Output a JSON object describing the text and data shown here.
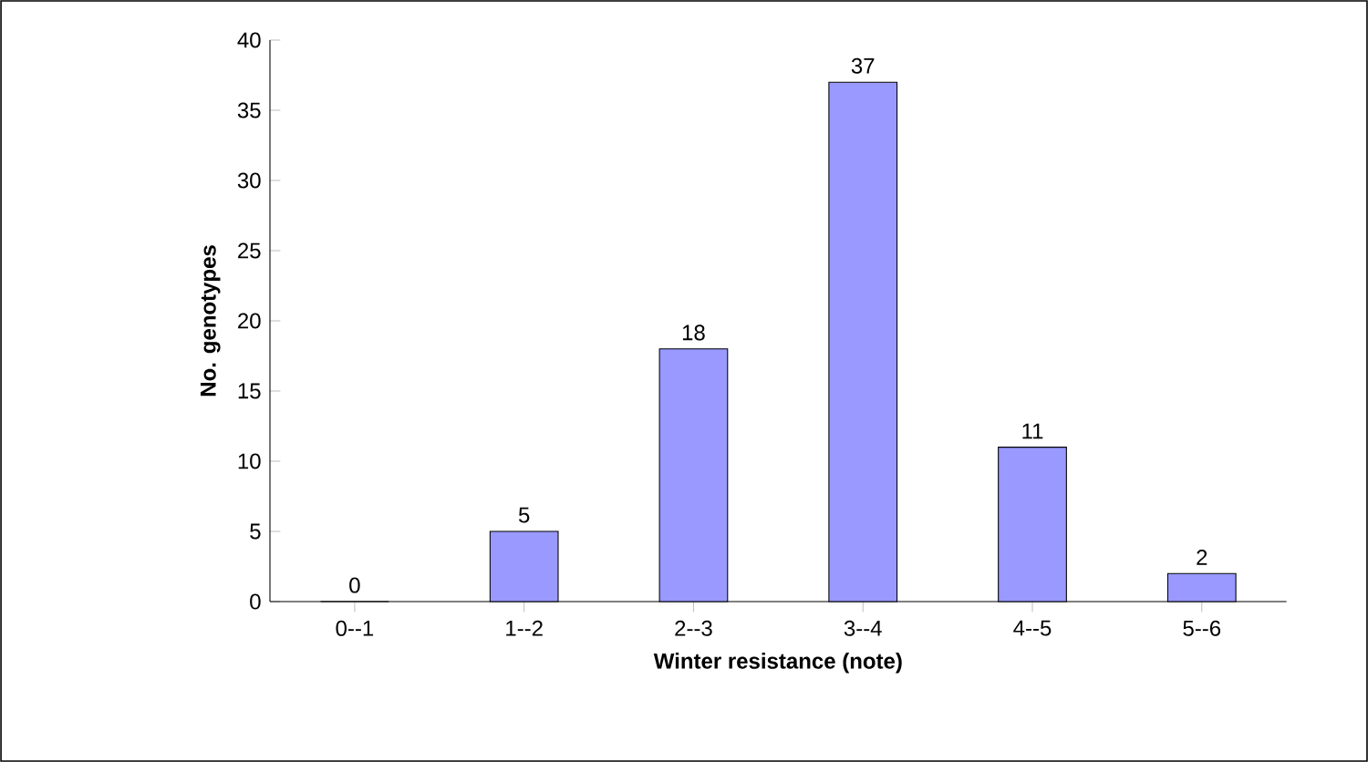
{
  "chart_data": {
    "type": "bar",
    "xlabel": "Winter resistance (note)",
    "ylabel": "No. genotypes",
    "categories": [
      "0--1",
      "1--2",
      "2--3",
      "3--4",
      "4--5",
      "5--6"
    ],
    "values": [
      0,
      5,
      18,
      37,
      11,
      2
    ],
    "color": "#9999ff",
    "data_labels": true,
    "ylim": [
      0,
      40
    ],
    "yticks": [
      0,
      5,
      10,
      15,
      20,
      25,
      30,
      35,
      40
    ],
    "grid": false
  }
}
